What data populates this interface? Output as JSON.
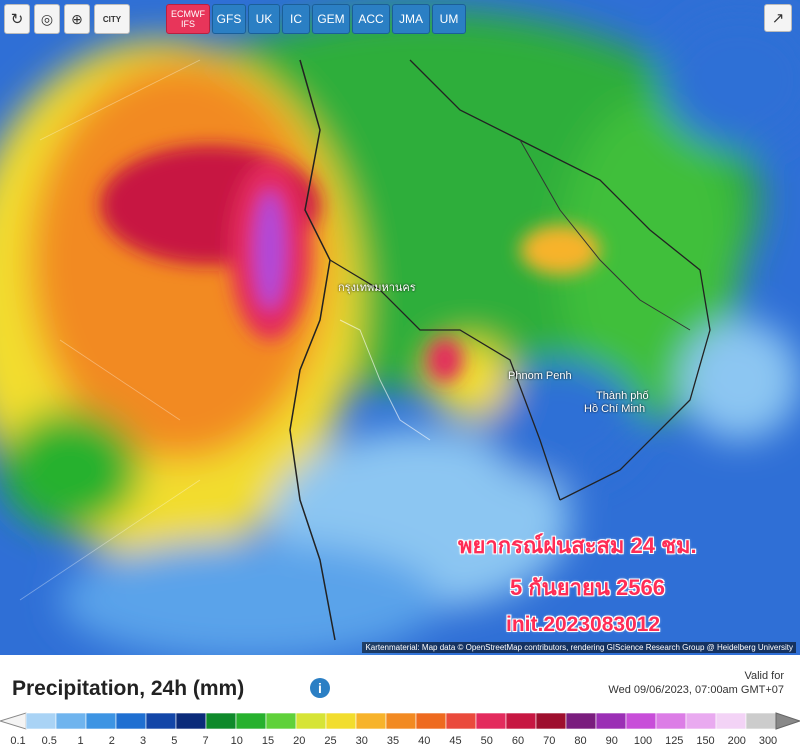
{
  "toolbar": {
    "tools": [
      {
        "name": "refresh-button",
        "icon": "refresh-icon"
      },
      {
        "name": "location-button",
        "icon": "location-pin-icon"
      },
      {
        "name": "zoom-button",
        "icon": "zoom-icon"
      },
      {
        "name": "city-button",
        "label": "CITY"
      }
    ],
    "models": [
      {
        "line1": "ECMWF",
        "line2": "IFS",
        "active": true
      },
      {
        "label": "GFS"
      },
      {
        "label": "UK"
      },
      {
        "label": "IC"
      },
      {
        "label": "GEM"
      },
      {
        "label": "ACC"
      },
      {
        "label": "JMA"
      },
      {
        "label": "UM"
      }
    ]
  },
  "map": {
    "places": {
      "bangkok": "กรุงเทพมหานคร",
      "phnom_penh": "Phnom Penh",
      "hcm_line1": "Thành phố",
      "hcm_line2": "Hồ Chí Minh"
    },
    "overlay": {
      "line1": "พยากรณ์ฝนสะสม 24 ชม.",
      "line2": "5 กันยายน 2566",
      "line3": "init.2023083012"
    },
    "attribution": "Kartenmaterial: Map data © OpenStreetMap contributors, rendering GIScience Research Group @ Heidelberg University"
  },
  "legend": {
    "title": "Precipitation, 24h (mm)",
    "valid_label": "Valid for",
    "valid_time": "Wed 09/06/2023, 07:00am GMT+07",
    "ticks": [
      "0.1",
      "0.5",
      "1",
      "2",
      "3",
      "5",
      "7",
      "10",
      "15",
      "20",
      "25",
      "30",
      "35",
      "40",
      "45",
      "50",
      "60",
      "70",
      "80",
      "90",
      "100",
      "125",
      "150",
      "200",
      "300"
    ],
    "colors": [
      "#a9d3f5",
      "#6fb4ee",
      "#3d94e3",
      "#1f6fd1",
      "#1346a8",
      "#0b2b7a",
      "#0f8a2b",
      "#27b12e",
      "#5fd13a",
      "#d6e436",
      "#f2dd2e",
      "#f7b32b",
      "#f28a22",
      "#ee6a1f",
      "#ea4a3c",
      "#e32b5d",
      "#c71742",
      "#9e0f2e",
      "#7a1d7e",
      "#9b2fb5",
      "#c84ed9",
      "#dc7de6",
      "#e9aaf0",
      "#f3d3f6",
      "#cccccc"
    ]
  }
}
